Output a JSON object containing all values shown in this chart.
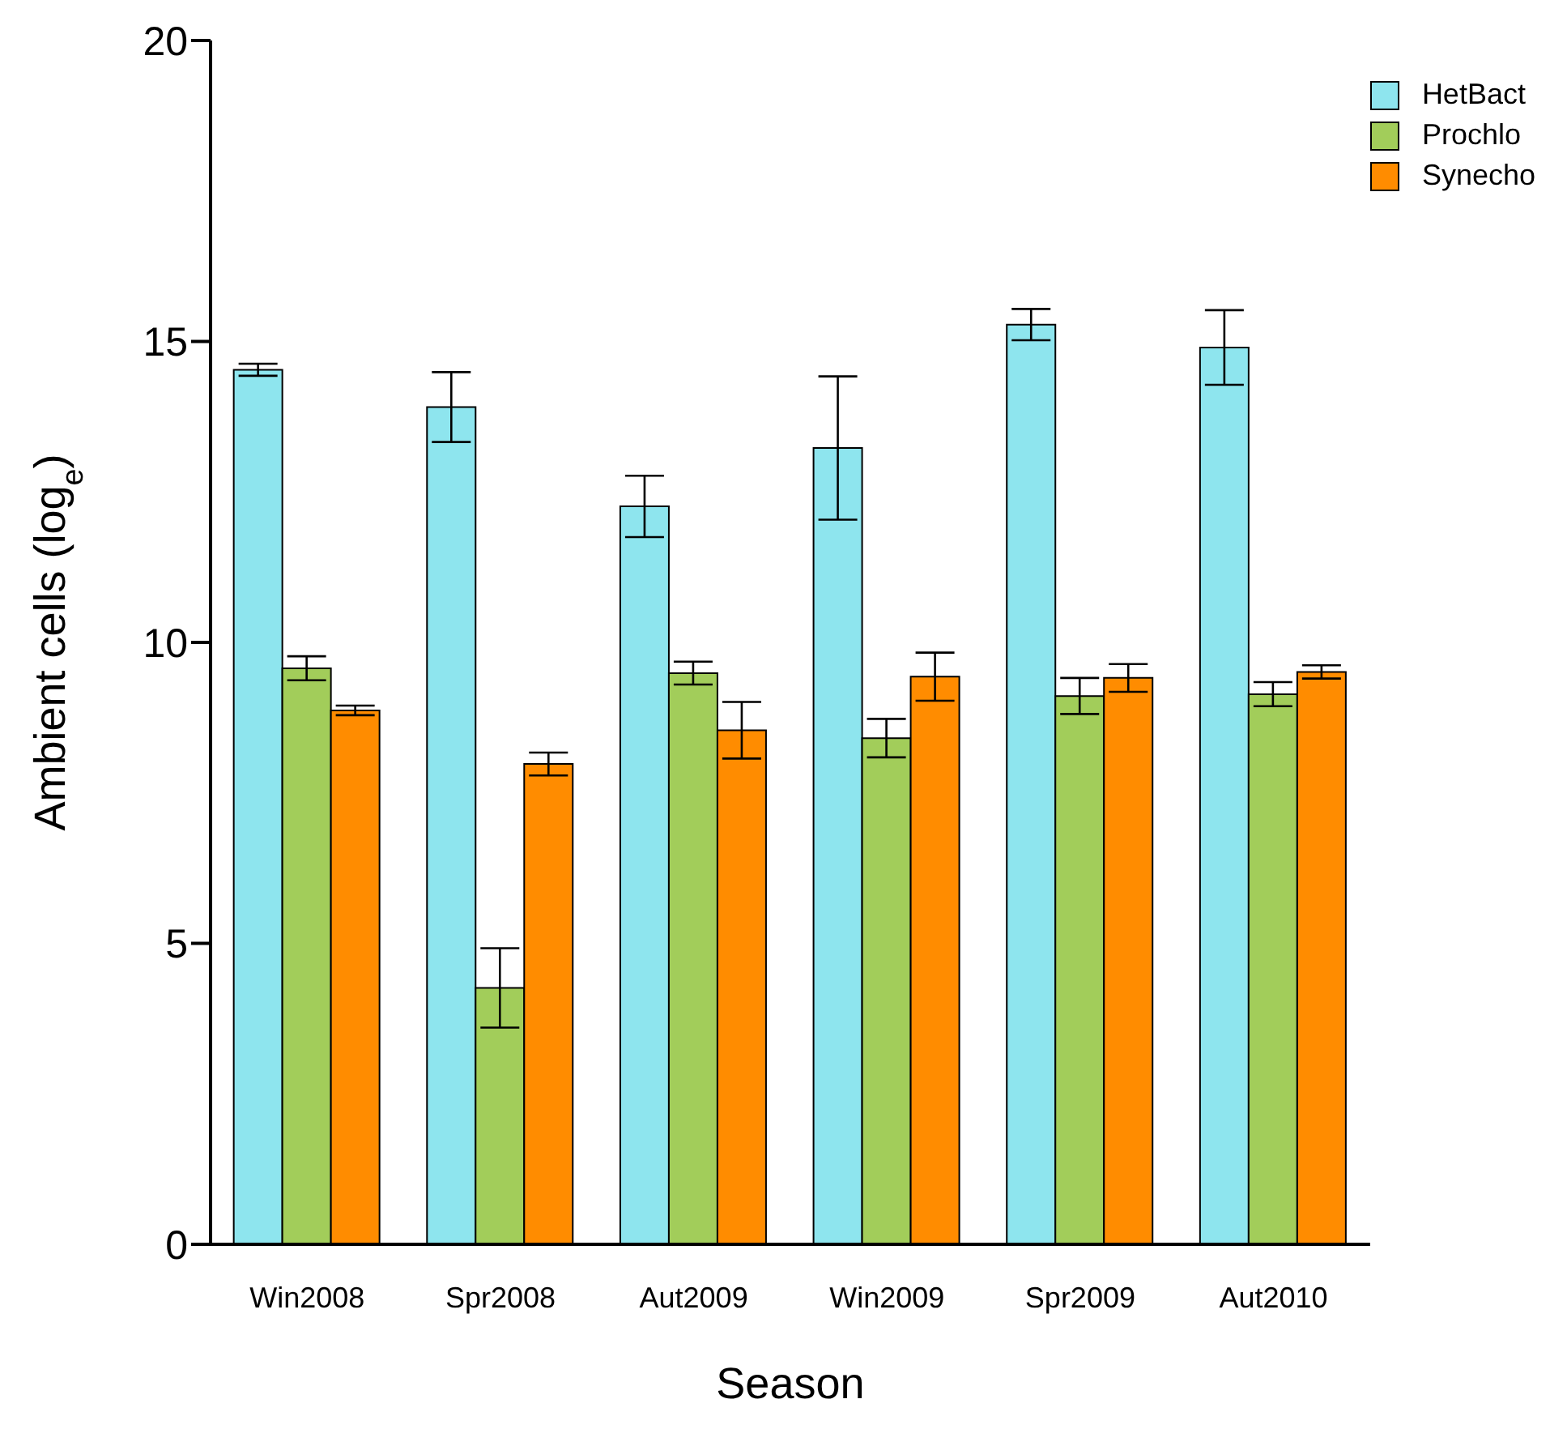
{
  "chart_data": {
    "type": "bar",
    "xlabel": "Season",
    "ylabel": "Ambient cells  (log$_{e}$)",
    "categories": [
      "Win2008",
      "Spr2008",
      "Aut2009",
      "Win2009",
      "Spr2009",
      "Aut2010"
    ],
    "series": [
      {
        "name": "HetBact",
        "color": "#8ee5ee",
        "values": [
          14.53,
          13.91,
          12.26,
          13.23,
          15.28,
          14.9
        ],
        "errors": [
          0.1,
          0.58,
          0.51,
          1.19,
          0.26,
          0.62
        ]
      },
      {
        "name": "Prochlo",
        "color": "#a2cd5a",
        "values": [
          9.57,
          4.26,
          9.49,
          8.41,
          9.11,
          9.14
        ],
        "errors": [
          0.2,
          0.66,
          0.19,
          0.32,
          0.3,
          0.2
        ]
      },
      {
        "name": "Synecho",
        "color": "#ff8c00",
        "values": [
          8.87,
          7.98,
          8.54,
          9.43,
          9.41,
          9.51
        ],
        "errors": [
          0.08,
          0.19,
          0.47,
          0.4,
          0.23,
          0.11
        ]
      }
    ],
    "ylim": [
      0,
      20
    ],
    "yticks": [
      0,
      5,
      10,
      15,
      20
    ],
    "grid": false,
    "legend": "top right"
  }
}
